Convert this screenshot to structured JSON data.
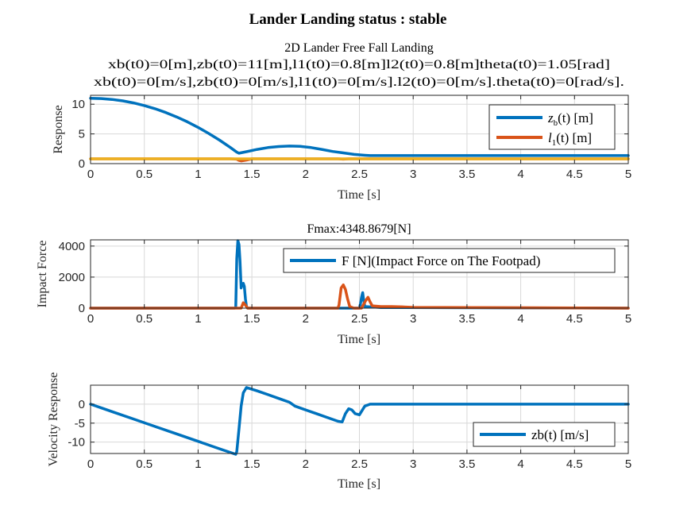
{
  "figure": {
    "suptitle": "Lander Landing status : stable"
  },
  "chart_data": [
    {
      "type": "line",
      "title_lines": [
        "2D Lander Free Fall Landing",
        "xb(t0)=0[m],zb(t0)=11[m],l1(t0)=0.8[m]l2(t0)=0.8[m]theta(t0)=1.05[rad]",
        "xb(t0)=0[m/s],zb(t0)=0[m/s],l1(t0)=0[m/s].l2(t0)=0[m/s].theta(t0)=0[rad/s]."
      ],
      "xlabel": "Time [s]",
      "ylabel": "Response",
      "xlim": [
        0,
        5
      ],
      "ylim": [
        0,
        11.5
      ],
      "xticks": [
        "0",
        "0.5",
        "1",
        "1.5",
        "2",
        "2.5",
        "3",
        "3.5",
        "4",
        "4.5",
        "5"
      ],
      "yticks": [
        "0",
        "5",
        "10"
      ],
      "grid": true,
      "legend_position": "top-right",
      "series": [
        {
          "name": "z_b(t) [m]",
          "color": "#0072BD",
          "x": [
            0,
            0.1,
            0.2,
            0.3,
            0.4,
            0.5,
            0.6,
            0.7,
            0.8,
            0.9,
            1.0,
            1.1,
            1.2,
            1.3,
            1.36,
            1.38,
            1.45,
            1.55,
            1.65,
            1.75,
            1.85,
            1.95,
            2.05,
            2.15,
            2.25,
            2.35,
            2.45,
            2.55,
            2.6,
            3.0,
            3.5,
            4.0,
            4.5,
            5.0
          ],
          "y": [
            11.0,
            10.95,
            10.8,
            10.56,
            10.21,
            9.78,
            9.24,
            8.6,
            7.86,
            7.03,
            6.1,
            5.07,
            3.94,
            2.72,
            1.93,
            1.75,
            2.0,
            2.4,
            2.7,
            2.88,
            2.95,
            2.9,
            2.7,
            2.4,
            2.05,
            1.8,
            1.55,
            1.4,
            1.35,
            1.35,
            1.35,
            1.35,
            1.35,
            1.35
          ]
        },
        {
          "name": "l_1(t) [m]",
          "color": "#D95319",
          "x": [
            0,
            1.3,
            1.36,
            1.38,
            1.4,
            1.45,
            1.5,
            2.3,
            2.35,
            2.4,
            2.5,
            5.0
          ],
          "y": [
            0.8,
            0.8,
            0.75,
            0.55,
            0.45,
            0.6,
            0.8,
            0.8,
            0.75,
            0.8,
            0.8,
            0.8
          ]
        },
        {
          "name": "",
          "color": "#EDB120",
          "x": [
            0,
            5
          ],
          "y": [
            0.8,
            0.8
          ]
        }
      ]
    },
    {
      "type": "line",
      "title_lines": [
        "Fmax:4348.8679[N]"
      ],
      "xlabel": "Time [s]",
      "ylabel": "Impact Force",
      "xlim": [
        0,
        5
      ],
      "ylim": [
        0,
        4400
      ],
      "xticks": [
        "0",
        "0.5",
        "1",
        "1.5",
        "2",
        "2.5",
        "3",
        "3.5",
        "4",
        "4.5",
        "5"
      ],
      "yticks": [
        "0",
        "2000",
        "4000"
      ],
      "grid": true,
      "legend_position": "top-right",
      "series": [
        {
          "name": "F [N](Impact Force on The Footpad)",
          "color": "#0072BD",
          "x": [
            0,
            1.34,
            1.35,
            1.36,
            1.37,
            1.38,
            1.39,
            1.4,
            1.41,
            1.42,
            1.43,
            1.44,
            1.45,
            1.46,
            2.5,
            2.51,
            2.52,
            2.53,
            2.54,
            2.55,
            2.6,
            2.65,
            2.7,
            5.0
          ],
          "y": [
            0,
            0,
            50,
            3200,
            4349,
            4100,
            3000,
            1300,
            1500,
            1600,
            1400,
            600,
            100,
            0,
            0,
            300,
            700,
            1000,
            500,
            100,
            80,
            60,
            40,
            0
          ]
        },
        {
          "name": "",
          "color": "#D95319",
          "x": [
            0,
            1.35,
            1.4,
            1.42,
            1.44,
            1.46,
            2.3,
            2.31,
            2.33,
            2.35,
            2.37,
            2.39,
            2.41,
            2.45,
            2.52,
            2.56,
            2.58,
            2.6,
            2.62,
            2.7,
            2.8,
            2.9,
            3.0,
            5.0
          ],
          "y": [
            0,
            0,
            0,
            350,
            200,
            0,
            0,
            200,
            1300,
            1500,
            1200,
            600,
            100,
            0,
            0,
            500,
            700,
            400,
            150,
            100,
            100,
            80,
            50,
            0
          ]
        }
      ]
    },
    {
      "type": "line",
      "title_lines": [],
      "xlabel": "Time [s]",
      "ylabel": "Velocity Response",
      "xlim": [
        0,
        5
      ],
      "ylim": [
        -13,
        5
      ],
      "xticks": [
        "0",
        "0.5",
        "1",
        "1.5",
        "2",
        "2.5",
        "3",
        "3.5",
        "4",
        "4.5",
        "5"
      ],
      "yticks": [
        "-10",
        "-5",
        "0"
      ],
      "grid": true,
      "legend_position": "bottom-right",
      "series": [
        {
          "name": "zb(t) [m/s]",
          "color": "#0072BD",
          "x": [
            0,
            0.2,
            0.4,
            0.6,
            0.8,
            1.0,
            1.2,
            1.35,
            1.36,
            1.38,
            1.4,
            1.42,
            1.45,
            1.55,
            1.65,
            1.75,
            1.85,
            1.9,
            2.0,
            2.1,
            2.2,
            2.3,
            2.34,
            2.37,
            2.4,
            2.43,
            2.46,
            2.5,
            2.55,
            2.6,
            2.7,
            3.0,
            3.5,
            4.0,
            4.5,
            5.0
          ],
          "y": [
            0,
            -1.96,
            -3.92,
            -5.88,
            -7.84,
            -9.8,
            -11.76,
            -13.2,
            -12.5,
            -6.5,
            -0.5,
            3.0,
            4.4,
            3.5,
            2.5,
            1.5,
            0.5,
            -0.5,
            -1.5,
            -2.5,
            -3.5,
            -4.5,
            -4.7,
            -2.5,
            -1.2,
            -1.5,
            -2.5,
            -2.8,
            -0.5,
            0,
            0,
            0,
            0,
            0,
            0,
            0
          ]
        }
      ]
    }
  ]
}
